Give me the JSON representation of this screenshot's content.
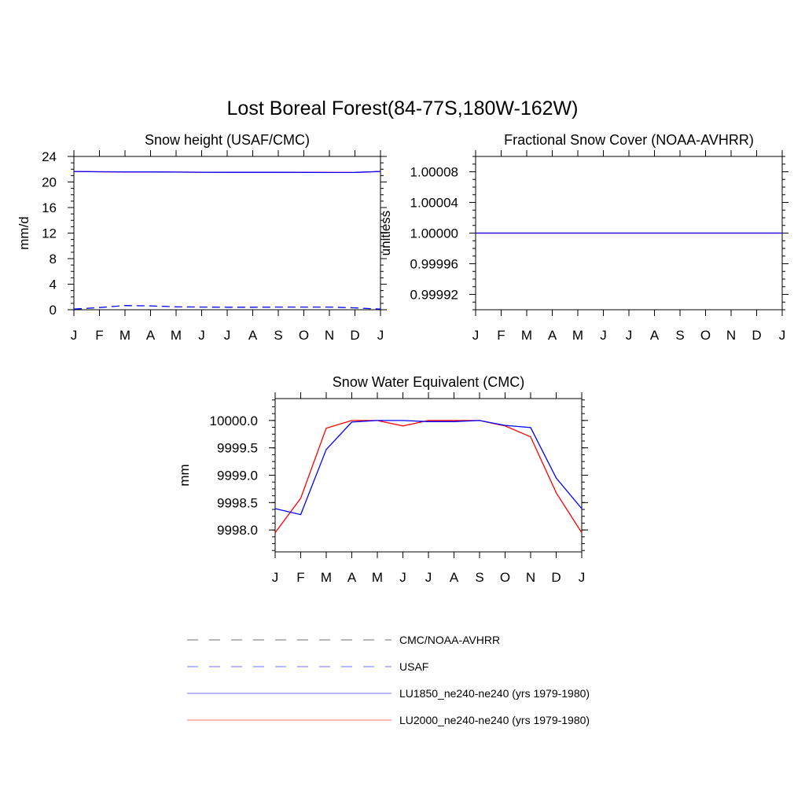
{
  "figure": {
    "title": "Lost Boreal Forest(84-77S,180W-162W)"
  },
  "months": [
    "J",
    "F",
    "M",
    "A",
    "M",
    "J",
    "J",
    "A",
    "S",
    "O",
    "N",
    "D",
    "J"
  ],
  "colors": {
    "obs_cmc": "#000000",
    "obs_usaf": "#0000ff",
    "lu1850": "#0000ff",
    "lu2000": "#ff0000"
  },
  "legend": [
    {
      "label": "CMC/NOAA-AVHRR",
      "color": "#000000",
      "dash": true,
      "light": true
    },
    {
      "label": "USAF",
      "color": "#0000ff",
      "dash": true,
      "light": true
    },
    {
      "label": "LU1850_ne240-ne240 (yrs 1979-1980)",
      "color": "#0000ff",
      "dash": false,
      "light": true
    },
    {
      "label": "LU2000_ne240-ne240 (yrs 1979-1980)",
      "color": "#ff0000",
      "dash": false,
      "light": true
    }
  ],
  "chart_data": [
    {
      "id": "snow-height",
      "type": "line",
      "title": "Snow height (USAF/CMC)",
      "xlabel": "",
      "ylabel": "mm/d",
      "x": [
        1,
        2,
        3,
        4,
        5,
        6,
        7,
        8,
        9,
        10,
        11,
        12,
        13
      ],
      "xtick_labels": [
        "J",
        "F",
        "M",
        "A",
        "M",
        "J",
        "J",
        "A",
        "S",
        "O",
        "N",
        "D",
        "J"
      ],
      "ylim": [
        0,
        24
      ],
      "yticks": [
        "0",
        "4",
        "8",
        "12",
        "16",
        "20",
        "24"
      ],
      "grid": false,
      "series": [
        {
          "key": "lu2000",
          "color": "#ff0000",
          "dash": false,
          "values": [
            21.65,
            21.6,
            21.58,
            21.57,
            21.55,
            21.53,
            21.52,
            21.52,
            21.51,
            21.5,
            21.49,
            21.49,
            21.65
          ]
        },
        {
          "key": "lu1850",
          "color": "#0000ff",
          "dash": false,
          "values": [
            21.65,
            21.6,
            21.58,
            21.57,
            21.55,
            21.53,
            21.52,
            21.52,
            21.51,
            21.5,
            21.49,
            21.5,
            21.65
          ]
        },
        {
          "key": "usaf",
          "color": "#0000ff",
          "dash": true,
          "values": [
            0.1,
            0.35,
            0.65,
            0.6,
            0.45,
            0.42,
            0.4,
            0.4,
            0.42,
            0.42,
            0.42,
            0.3,
            0.1
          ]
        }
      ]
    },
    {
      "id": "fractional-snow-cover",
      "type": "line",
      "title": "Fractional Snow Cover (NOAA-AVHRR)",
      "xlabel": "",
      "ylabel": "unitless",
      "x": [
        1,
        2,
        3,
        4,
        5,
        6,
        7,
        8,
        9,
        10,
        11,
        12,
        13
      ],
      "xtick_labels": [
        "J",
        "F",
        "M",
        "A",
        "M",
        "J",
        "J",
        "A",
        "S",
        "O",
        "N",
        "D",
        "J"
      ],
      "ylim": [
        0.9999,
        1.0001
      ],
      "yticks": [
        "0.99992",
        "0.99996",
        "1.00000",
        "1.00004",
        "1.00008"
      ],
      "grid": false,
      "series": [
        {
          "key": "lu2000",
          "color": "#ff0000",
          "dash": false,
          "values": [
            1,
            1,
            1,
            1,
            1,
            1,
            1,
            1,
            1,
            1,
            1,
            1,
            1
          ]
        },
        {
          "key": "lu1850",
          "color": "#0000ff",
          "dash": false,
          "values": [
            1,
            1,
            1,
            1,
            1,
            1,
            1,
            1,
            1,
            1,
            1,
            1,
            1
          ]
        }
      ]
    },
    {
      "id": "snow-water-equivalent",
      "type": "line",
      "title": "Snow Water Equivalent (CMC)",
      "xlabel": "",
      "ylabel": "mm",
      "x": [
        1,
        2,
        3,
        4,
        5,
        6,
        7,
        8,
        9,
        10,
        11,
        12,
        13
      ],
      "xtick_labels": [
        "J",
        "F",
        "M",
        "A",
        "M",
        "J",
        "J",
        "A",
        "S",
        "O",
        "N",
        "D",
        "J"
      ],
      "ylim": [
        9997.6,
        10000.4
      ],
      "yticks": [
        "9998.0",
        "9998.5",
        "9999.0",
        "9999.5",
        "10000.0"
      ],
      "grid": false,
      "series": [
        {
          "key": "lu2000",
          "color": "#ff0000",
          "dash": false,
          "values": [
            9997.95,
            9998.58,
            9999.86,
            10000.0,
            10000.0,
            9999.9,
            10000.0,
            10000.0,
            10000.0,
            9999.9,
            9999.7,
            9998.68,
            9997.95
          ]
        },
        {
          "key": "lu1850",
          "color": "#0000ff",
          "dash": false,
          "values": [
            9998.39,
            9998.28,
            9999.47,
            9999.97,
            10000.0,
            10000.0,
            9999.98,
            9999.98,
            10000.0,
            9999.91,
            9999.87,
            9998.95,
            9998.39
          ]
        }
      ]
    }
  ]
}
